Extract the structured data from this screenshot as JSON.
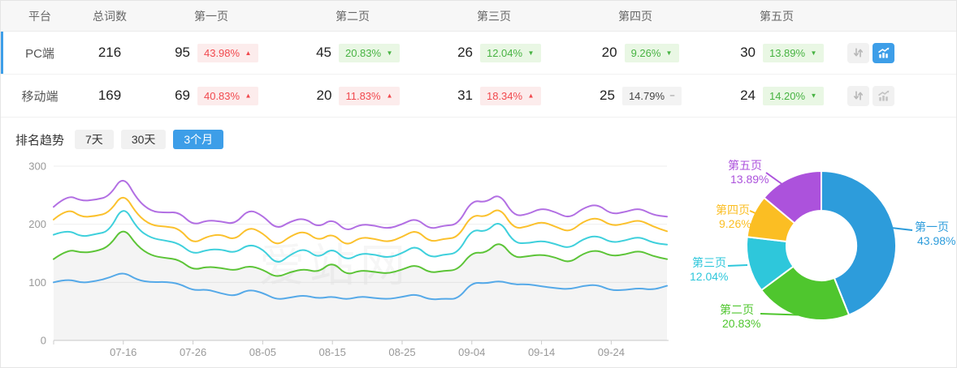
{
  "table": {
    "headers": {
      "platform": "平台",
      "total": "总词数",
      "pages": [
        "第一页",
        "第二页",
        "第三页",
        "第四页",
        "第五页"
      ]
    },
    "rows": [
      {
        "platform": "PC端",
        "total": "216",
        "selected": true,
        "pages": [
          {
            "count": "95",
            "pct": "43.98%",
            "trend": "up",
            "tone": "red"
          },
          {
            "count": "45",
            "pct": "20.83%",
            "trend": "down",
            "tone": "green"
          },
          {
            "count": "26",
            "pct": "12.04%",
            "trend": "down",
            "tone": "green"
          },
          {
            "count": "20",
            "pct": "9.26%",
            "trend": "down",
            "tone": "green"
          },
          {
            "count": "30",
            "pct": "13.89%",
            "trend": "down",
            "tone": "green"
          }
        ],
        "chart_active": true
      },
      {
        "platform": "移动端",
        "total": "169",
        "selected": false,
        "pages": [
          {
            "count": "69",
            "pct": "40.83%",
            "trend": "up",
            "tone": "red"
          },
          {
            "count": "20",
            "pct": "11.83%",
            "trend": "up",
            "tone": "red"
          },
          {
            "count": "31",
            "pct": "18.34%",
            "trend": "up",
            "tone": "red"
          },
          {
            "count": "25",
            "pct": "14.79%",
            "trend": "flat",
            "tone": "gray"
          },
          {
            "count": "24",
            "pct": "14.20%",
            "trend": "down",
            "tone": "green"
          }
        ],
        "chart_active": false
      }
    ]
  },
  "trend_section": {
    "title": "排名趋势",
    "tabs": [
      {
        "label": "7天",
        "active": false
      },
      {
        "label": "30天",
        "active": false
      },
      {
        "label": "3个月",
        "active": true
      }
    ]
  },
  "watermark": "爱站网",
  "colors": {
    "accent": "#3d9ee8",
    "badge_red_text": "#f1494e",
    "badge_red_bg": "#fcecec",
    "badge_green_text": "#47b342",
    "badge_green_bg": "#e9f7e4",
    "badge_flat_bg": "#f3f3f3"
  },
  "chart_data": [
    {
      "type": "line",
      "title": "排名趋势 (3个月)",
      "x_tick_labels": [
        "07-16",
        "07-26",
        "08-05",
        "08-15",
        "08-25",
        "09-04",
        "09-14",
        "09-24"
      ],
      "x_tick_indices": [
        5,
        10,
        15,
        20,
        25,
        30,
        35,
        40
      ],
      "points_per_series": 45,
      "ylim": [
        0,
        300
      ],
      "y_ticks": [
        0,
        100,
        200,
        300
      ],
      "grid": true,
      "legend_position": "none",
      "series": [
        {
          "name": "第一页",
          "color": "#55a9e8",
          "area": false,
          "values": [
            100,
            106,
            99,
            102,
            108,
            118,
            104,
            100,
            101,
            98,
            86,
            88,
            81,
            76,
            88,
            82,
            70,
            74,
            78,
            72,
            76,
            70,
            76,
            73,
            71,
            75,
            80,
            70,
            72,
            71,
            100,
            98,
            103,
            96,
            97,
            93,
            90,
            88,
            94,
            96,
            86,
            87,
            90,
            87,
            94
          ]
        },
        {
          "name": "第二页",
          "color": "#5cc437",
          "area": true,
          "area_color": "rgba(0,0,0,0.045)",
          "values": [
            140,
            157,
            151,
            153,
            162,
            196,
            162,
            146,
            142,
            139,
            121,
            127,
            125,
            120,
            129,
            122,
            108,
            118,
            123,
            117,
            136,
            112,
            121,
            118,
            115,
            122,
            131,
            116,
            120,
            121,
            152,
            150,
            172,
            142,
            145,
            148,
            143,
            133,
            150,
            156,
            145,
            148,
            155,
            145,
            140
          ]
        },
        {
          "name": "第三页",
          "color": "#3fd0dc",
          "area": false,
          "values": [
            182,
            191,
            178,
            183,
            188,
            234,
            192,
            176,
            172,
            167,
            148,
            156,
            157,
            150,
            166,
            158,
            130,
            148,
            159,
            141,
            160,
            137,
            150,
            148,
            142,
            150,
            164,
            142,
            148,
            150,
            192,
            186,
            208,
            168,
            167,
            172,
            166,
            158,
            175,
            181,
            168,
            172,
            179,
            168,
            165
          ]
        },
        {
          "name": "第四页",
          "color": "#fbc12d",
          "area": false,
          "values": [
            208,
            228,
            212,
            214,
            220,
            255,
            216,
            198,
            196,
            193,
            166,
            179,
            183,
            172,
            196,
            185,
            162,
            180,
            189,
            171,
            185,
            162,
            178,
            175,
            169,
            178,
            191,
            169,
            175,
            177,
            217,
            212,
            230,
            192,
            196,
            205,
            196,
            186,
            205,
            212,
            197,
            201,
            208,
            196,
            188
          ]
        },
        {
          "name": "第五页",
          "color": "#b26fe3",
          "area": false,
          "values": [
            230,
            251,
            240,
            242,
            248,
            285,
            242,
            222,
            220,
            221,
            198,
            207,
            205,
            200,
            226,
            215,
            191,
            205,
            211,
            194,
            210,
            187,
            200,
            198,
            192,
            200,
            211,
            191,
            198,
            199,
            242,
            237,
            254,
            214,
            217,
            228,
            221,
            210,
            228,
            235,
            217,
            221,
            228,
            216,
            213
          ]
        }
      ]
    },
    {
      "type": "pie",
      "donut": true,
      "start_angle_deg": 0,
      "clockwise": true,
      "slices": [
        {
          "name": "第一页",
          "value": 43.98,
          "label": "43.98%",
          "color": "#2d9cdb"
        },
        {
          "name": "第二页",
          "value": 20.83,
          "label": "20.83%",
          "color": "#4fc62e"
        },
        {
          "name": "第三页",
          "value": 12.04,
          "label": "12.04%",
          "color": "#2ec7db"
        },
        {
          "name": "第四页",
          "value": 9.26,
          "label": "9.26%",
          "color": "#fbbe23"
        },
        {
          "name": "第五页",
          "value": 13.89,
          "label": "13.89%",
          "color": "#ac52dc"
        }
      ]
    }
  ]
}
